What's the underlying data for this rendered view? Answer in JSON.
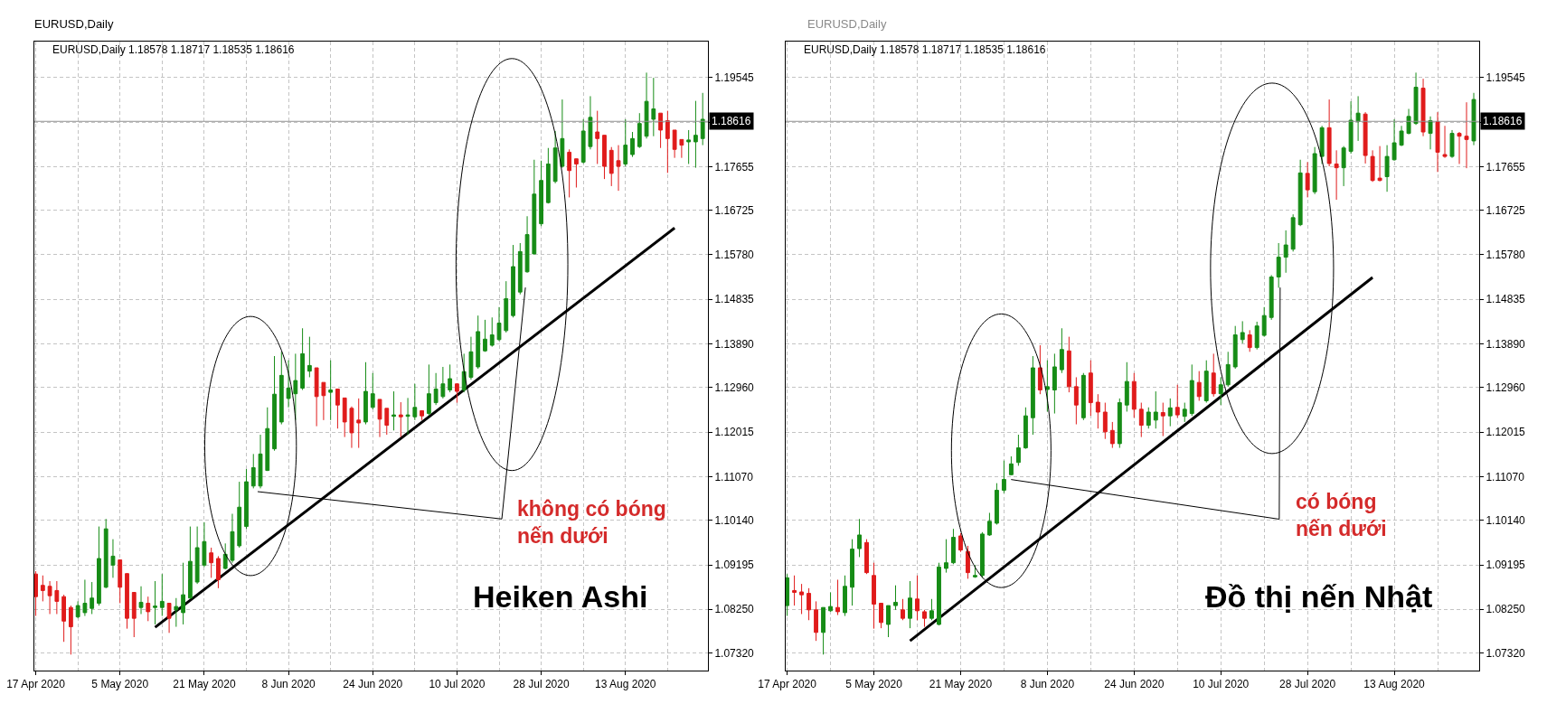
{
  "chart_data": [
    {
      "type": "candlestick",
      "title": "EURUSD,Daily",
      "subtitle": "EURUSD,Daily 1.18578 1.18717 1.18535 1.18616",
      "categories": [
        "17 Apr 2020",
        null,
        null,
        null,
        null,
        null,
        null,
        null,
        null,
        null,
        null,
        null,
        "5 May 2020",
        null,
        null,
        null,
        null,
        null,
        null,
        null,
        null,
        null,
        null,
        null,
        "21 May 2020",
        null,
        null,
        null,
        null,
        null,
        null,
        null,
        null,
        null,
        null,
        null,
        "8 Jun 2020",
        null,
        null,
        null,
        null,
        null,
        null,
        null,
        null,
        null,
        null,
        null,
        "24 Jun 2020",
        null,
        null,
        null,
        null,
        null,
        null,
        null,
        null,
        null,
        null,
        null,
        "10 Jul 2020",
        null,
        null,
        null,
        null,
        null,
        null,
        null,
        null,
        null,
        null,
        null,
        "28 Jul 2020",
        null,
        null,
        null,
        null,
        null,
        null,
        null,
        null,
        null,
        null,
        null,
        "13 Aug 2020",
        null,
        null,
        null,
        null,
        null,
        null,
        null,
        null,
        null,
        null,
        null
      ],
      "ohlc": [
        [
          1.09,
          1.0906,
          1.0811,
          1.0852
        ],
        [
          1.0876,
          1.0897,
          1.0842,
          1.0865
        ],
        [
          1.0874,
          1.0885,
          1.0815,
          1.0854
        ],
        [
          1.0865,
          1.0885,
          1.0815,
          1.0842
        ],
        [
          1.0852,
          1.0856,
          1.0756,
          1.08
        ],
        [
          1.0829,
          1.0833,
          1.0729,
          1.0788
        ],
        [
          1.0809,
          1.0842,
          1.0806,
          1.0833
        ],
        [
          1.0818,
          1.0888,
          1.0811,
          1.0838
        ],
        [
          1.0827,
          1.0883,
          1.0815,
          1.0849
        ],
        [
          1.0838,
          1.1001,
          1.0833,
          1.0933
        ],
        [
          1.0872,
          1.1017,
          1.087,
          1.0996
        ],
        [
          1.0919,
          1.0974,
          1.0892,
          1.0938
        ],
        [
          1.093,
          1.093,
          1.0838,
          1.0872
        ],
        [
          1.0901,
          1.0901,
          1.0784,
          1.0806
        ],
        [
          1.0861,
          1.0861,
          1.0766,
          1.0806
        ],
        [
          1.0829,
          1.0874,
          1.0815,
          1.084
        ],
        [
          1.0838,
          1.0852,
          1.08,
          1.082
        ],
        [
          1.0829,
          1.0885,
          1.0793,
          1.0832
        ],
        [
          1.0829,
          1.09,
          1.0811,
          1.0842
        ],
        [
          1.0838,
          1.0838,
          1.0775,
          1.0806
        ],
        [
          1.0824,
          1.0849,
          1.0788,
          1.0831
        ],
        [
          1.0818,
          1.0924,
          1.0793,
          1.0856
        ],
        [
          1.0849,
          1.1001,
          1.0847,
          1.0927
        ],
        [
          1.0883,
          1.1001,
          1.0879,
          1.0956
        ],
        [
          1.0919,
          1.101,
          1.0915,
          1.0969
        ],
        [
          1.0945,
          1.0956,
          1.0892,
          1.0924
        ],
        [
          1.0933,
          1.0938,
          1.087,
          1.0888
        ],
        [
          1.0912,
          1.0965,
          1.091,
          1.0942
        ],
        [
          1.0929,
          1.1028,
          1.0924,
          1.099
        ],
        [
          1.096,
          1.1096,
          1.0956,
          1.1042
        ],
        [
          1.1001,
          1.1123,
          1.0996,
          1.1096
        ],
        [
          1.1087,
          1.1155,
          1.1082,
          1.1126
        ],
        [
          1.1087,
          1.1196,
          1.1082,
          1.1155
        ],
        [
          1.112,
          1.1254,
          1.1119,
          1.1209
        ],
        [
          1.1166,
          1.1363,
          1.1162,
          1.1282
        ],
        [
          1.1223,
          1.1372,
          1.1218,
          1.1322
        ],
        [
          1.1273,
          1.1354,
          1.1254,
          1.1295
        ],
        [
          1.1283,
          1.1368,
          1.1227,
          1.1311
        ],
        [
          1.1295,
          1.1422,
          1.1291,
          1.1368
        ],
        [
          1.1331,
          1.1404,
          1.1318,
          1.1343
        ],
        [
          1.1338,
          1.1338,
          1.1214,
          1.1277
        ],
        [
          1.1307,
          1.1307,
          1.1227,
          1.1279
        ],
        [
          1.1286,
          1.1354,
          1.1227,
          1.1291
        ],
        [
          1.1293,
          1.1293,
          1.1209,
          1.1259
        ],
        [
          1.1274,
          1.1274,
          1.1191,
          1.1223
        ],
        [
          1.1252,
          1.1256,
          1.1168,
          1.12
        ],
        [
          1.1227,
          1.1273,
          1.1168,
          1.1221
        ],
        [
          1.1223,
          1.135,
          1.1218,
          1.1288
        ],
        [
          1.1254,
          1.1327,
          1.125,
          1.1283
        ],
        [
          1.1271,
          1.1271,
          1.1191,
          1.1229
        ],
        [
          1.1252,
          1.1252,
          1.1196,
          1.1216
        ],
        [
          1.1235,
          1.1288,
          1.1205,
          1.1238
        ],
        [
          1.1238,
          1.1265,
          1.1191,
          1.1234
        ],
        [
          1.1235,
          1.1274,
          1.1196,
          1.1238
        ],
        [
          1.1234,
          1.1304,
          1.1227,
          1.1254
        ],
        [
          1.1247,
          1.1247,
          1.1227,
          1.1236
        ],
        [
          1.1241,
          1.1345,
          1.1236,
          1.1283
        ],
        [
          1.1264,
          1.1327,
          1.1259,
          1.1293
        ],
        [
          1.1277,
          1.134,
          1.1273,
          1.1304
        ],
        [
          1.1291,
          1.1345,
          1.1286,
          1.1315
        ],
        [
          1.1304,
          1.1304,
          1.1264,
          1.1288
        ],
        [
          1.1291,
          1.1368,
          1.1286,
          1.133
        ],
        [
          1.1318,
          1.1404,
          1.1313,
          1.1372
        ],
        [
          1.134,
          1.1449,
          1.1336,
          1.1415
        ],
        [
          1.1374,
          1.144,
          1.1372,
          1.1399
        ],
        [
          1.1386,
          1.1445,
          1.1383,
          1.1408
        ],
        [
          1.1398,
          1.1467,
          1.1395,
          1.1433
        ],
        [
          1.1417,
          1.1522,
          1.1413,
          1.1485
        ],
        [
          1.1449,
          1.1599,
          1.1445,
          1.1553
        ],
        [
          1.1499,
          1.1603,
          1.1494,
          1.1585
        ],
        [
          1.1542,
          1.166,
          1.154,
          1.1621
        ],
        [
          1.158,
          1.178,
          1.1579,
          1.1707
        ],
        [
          1.1644,
          1.1778,
          1.1639,
          1.1736
        ],
        [
          1.1689,
          1.1805,
          1.1687,
          1.1771
        ],
        [
          1.1734,
          1.1841,
          1.173,
          1.1805
        ],
        [
          1.1766,
          1.1908,
          1.1763,
          1.1825
        ],
        [
          1.1796,
          1.1802,
          1.17,
          1.1757
        ],
        [
          1.1782,
          1.1782,
          1.1721,
          1.1771
        ],
        [
          1.1775,
          1.1866,
          1.1772,
          1.1841
        ],
        [
          1.1808,
          1.1915,
          1.1802,
          1.187
        ],
        [
          1.1839,
          1.1884,
          1.1771,
          1.1825
        ],
        [
          1.1832,
          1.1832,
          1.1739,
          1.1766
        ],
        [
          1.18,
          1.1807,
          1.1724,
          1.1751
        ],
        [
          1.1778,
          1.1811,
          1.1714,
          1.1766
        ],
        [
          1.1771,
          1.1866,
          1.1766,
          1.1811
        ],
        [
          1.1791,
          1.1839,
          1.1786,
          1.1825
        ],
        [
          1.1808,
          1.1879,
          1.1805,
          1.1857
        ],
        [
          1.183,
          1.1965,
          1.1825,
          1.1904
        ],
        [
          1.1866,
          1.1954,
          1.183,
          1.1888
        ],
        [
          1.1879,
          1.1879,
          1.1805,
          1.1843
        ],
        [
          1.1863,
          1.1884,
          1.1752,
          1.1825
        ],
        [
          1.1843,
          1.1843,
          1.1784,
          1.1802
        ],
        [
          1.1823,
          1.1823,
          1.1784,
          1.1811
        ],
        [
          1.1818,
          1.1843,
          1.1771,
          1.1822
        ],
        [
          1.1818,
          1.1905,
          1.1763,
          1.1832
        ],
        [
          1.1825,
          1.1922,
          1.1811,
          1.1866
        ]
      ],
      "colors": [
        "#e01b1b",
        "#e01b1b",
        "#e01b1b",
        "#e01b1b",
        "#e01b1b",
        "#e01b1b",
        "#168c16",
        "#168c16",
        "#168c16",
        "#168c16",
        "#168c16",
        "#168c16",
        "#e01b1b",
        "#e01b1b",
        "#e01b1b",
        "#168c16",
        "#e01b1b",
        "#168c16",
        "#168c16",
        "#e01b1b",
        "#168c16",
        "#168c16",
        "#168c16",
        "#168c16",
        "#168c16",
        "#e01b1b",
        "#e01b1b",
        "#168c16",
        "#168c16",
        "#168c16",
        "#168c16",
        "#168c16",
        "#168c16",
        "#168c16",
        "#168c16",
        "#168c16",
        "#168c16",
        "#168c16",
        "#168c16",
        "#168c16",
        "#e01b1b",
        "#e01b1b",
        "#168c16",
        "#e01b1b",
        "#e01b1b",
        "#e01b1b",
        "#e01b1b",
        "#168c16",
        "#168c16",
        "#e01b1b",
        "#e01b1b",
        "#168c16",
        "#e01b1b",
        "#168c16",
        "#168c16",
        "#e01b1b",
        "#168c16",
        "#168c16",
        "#168c16",
        "#168c16",
        "#e01b1b",
        "#168c16",
        "#168c16",
        "#168c16",
        "#168c16",
        "#168c16",
        "#168c16",
        "#168c16",
        "#168c16",
        "#168c16",
        "#168c16",
        "#168c16",
        "#168c16",
        "#168c16",
        "#168c16",
        "#168c16",
        "#e01b1b",
        "#e01b1b",
        "#168c16",
        "#168c16",
        "#e01b1b",
        "#e01b1b",
        "#e01b1b",
        "#e01b1b",
        "#168c16",
        "#168c16",
        "#168c16",
        "#168c16",
        "#168c16",
        "#e01b1b",
        "#e01b1b",
        "#e01b1b",
        "#e01b1b",
        "#168c16",
        "#168c16",
        "#168c16"
      ],
      "series": [
        {
          "type": "line",
          "color": "#000000",
          "values": [
            null,
            null,
            null,
            null,
            null,
            null,
            null,
            null,
            null,
            null,
            null,
            null,
            null,
            null,
            null,
            null,
            null,
            1.0787,
            null,
            null,
            null,
            null,
            null,
            null,
            null,
            null,
            null,
            null,
            null,
            null,
            null,
            null,
            null,
            null,
            null,
            null,
            null,
            null,
            null,
            null,
            null,
            null,
            null,
            null,
            null,
            null,
            null,
            null,
            null,
            null,
            null,
            null,
            null,
            null,
            null,
            null,
            null,
            null,
            null,
            null,
            null,
            null,
            null,
            null,
            null,
            null,
            null,
            null,
            null,
            null,
            null,
            null,
            null,
            null,
            null,
            null,
            null,
            null,
            null,
            null,
            null,
            null,
            null,
            null,
            null,
            null,
            null,
            null,
            null,
            null,
            null,
            1.1635,
            null,
            null,
            null,
            null
          ]
        }
      ],
      "ylim": [
        1.0695,
        1.2031
      ],
      "yticks": [
        1.19545,
        {
          "value": 1.186,
          "label": null
        },
        1.17655,
        1.16725,
        {
          "value": 1.1578,
          "label": "1.15780"
        },
        1.14835,
        {
          "value": 1.1389,
          "label": "1.13890"
        },
        {
          "value": 1.1296,
          "label": "1.12960"
        },
        1.12015,
        {
          "value": 1.1107,
          "label": "1.11070"
        },
        {
          "value": 1.1014,
          "label": "1.10140"
        },
        1.09195,
        {
          "value": 1.0825,
          "label": "1.08250"
        },
        {
          "value": 1.0732,
          "label": "1.07320"
        }
      ],
      "grid": true,
      "ref_lines": [
        {
          "axis": "y",
          "value": 1.18616,
          "label": "1.18616",
          "color": "#909090"
        }
      ],
      "annotations": [
        "không có bóng nến dưới",
        "Heiken Ashi"
      ]
    },
    {
      "type": "candlestick",
      "title": "EURUSD,Daily",
      "subtitle": "EURUSD,Daily 1.18578 1.18717 1.18535 1.18616",
      "categories": [
        "17 Apr 2020",
        null,
        null,
        null,
        null,
        null,
        null,
        null,
        null,
        null,
        null,
        null,
        "5 May 2020",
        null,
        null,
        null,
        null,
        null,
        null,
        null,
        null,
        null,
        null,
        null,
        "21 May 2020",
        null,
        null,
        null,
        null,
        null,
        null,
        null,
        null,
        null,
        null,
        null,
        "8 Jun 2020",
        null,
        null,
        null,
        null,
        null,
        null,
        null,
        null,
        null,
        null,
        null,
        "24 Jun 2020",
        null,
        null,
        null,
        null,
        null,
        null,
        null,
        null,
        null,
        null,
        null,
        "10 Jul 2020",
        null,
        null,
        null,
        null,
        null,
        null,
        null,
        null,
        null,
        null,
        null,
        "28 Jul 2020",
        null,
        null,
        null,
        null,
        null,
        null,
        null,
        null,
        null,
        null,
        null,
        "13 Aug 2020",
        null,
        null,
        null,
        null,
        null,
        null,
        null,
        null,
        null,
        null,
        null
      ],
      "ohlc": [
        [
          1.0833,
          1.09,
          1.0811,
          1.0892
        ],
        [
          1.0865,
          1.0897,
          1.0833,
          1.0861
        ],
        [
          1.0862,
          1.0879,
          1.0815,
          1.0856
        ],
        [
          1.0859,
          1.087,
          1.0802,
          1.0824
        ],
        [
          1.0824,
          1.0842,
          1.0758,
          1.0776
        ],
        [
          1.0776,
          1.0829,
          1.0729,
          1.0829
        ],
        [
          1.0822,
          1.0861,
          1.082,
          1.0831
        ],
        [
          1.0829,
          1.0888,
          1.0813,
          1.082
        ],
        [
          1.0818,
          1.0897,
          1.0811,
          1.0874
        ],
        [
          1.0872,
          1.0974,
          1.0833,
          1.0953
        ],
        [
          1.0954,
          1.1017,
          1.0936,
          1.0983
        ],
        [
          1.0967,
          1.0974,
          1.09,
          1.0903
        ],
        [
          1.0897,
          1.0924,
          1.0784,
          1.0836
        ],
        [
          1.0838,
          1.0838,
          1.0785,
          1.0797
        ],
        [
          1.0793,
          1.0833,
          1.0766,
          1.0833
        ],
        [
          1.0833,
          1.0876,
          1.0824,
          1.084
        ],
        [
          1.0824,
          1.0847,
          1.0802,
          1.0806
        ],
        [
          1.0806,
          1.0885,
          1.0785,
          1.0849
        ],
        [
          1.0847,
          1.0897,
          1.0802,
          1.0822
        ],
        [
          1.082,
          1.0824,
          1.0788,
          1.0806
        ],
        [
          1.0806,
          1.0847,
          1.0802,
          1.0822
        ],
        [
          1.0793,
          1.0924,
          1.0791,
          1.0915
        ],
        [
          1.0912,
          1.0974,
          1.0903,
          1.0924
        ],
        [
          1.0924,
          1.0996,
          1.0921,
          1.0978
        ],
        [
          1.0981,
          1.0987,
          1.0947,
          1.0951
        ],
        [
          1.0948,
          1.096,
          1.089,
          1.0903
        ],
        [
          1.0894,
          1.0919,
          1.0892,
          1.0897
        ],
        [
          1.0897,
          1.0989,
          1.0892,
          1.0985
        ],
        [
          1.0983,
          1.103,
          1.0981,
          1.1012
        ],
        [
          1.1008,
          1.1093,
          1.1005,
          1.1078
        ],
        [
          1.1078,
          1.1141,
          1.1072,
          1.1101
        ],
        [
          1.1111,
          1.115,
          1.111,
          1.1134
        ],
        [
          1.1137,
          1.1196,
          1.113,
          1.1168
        ],
        [
          1.1168,
          1.1254,
          1.1166,
          1.1236
        ],
        [
          1.1232,
          1.1363,
          1.1196,
          1.1338
        ],
        [
          1.1338,
          1.1386,
          1.1282,
          1.1291
        ],
        [
          1.1292,
          1.1354,
          1.1245,
          1.1298
        ],
        [
          1.1291,
          1.1368,
          1.1241,
          1.134
        ],
        [
          1.1334,
          1.1422,
          1.1327,
          1.1377
        ],
        [
          1.1374,
          1.1404,
          1.1286,
          1.1298
        ],
        [
          1.1298,
          1.1318,
          1.1218,
          1.1259
        ],
        [
          1.1232,
          1.1327,
          1.1227,
          1.1322
        ],
        [
          1.1327,
          1.1354,
          1.1236,
          1.1264
        ],
        [
          1.1265,
          1.1282,
          1.1209,
          1.1244
        ],
        [
          1.1244,
          1.1264,
          1.1187,
          1.1202
        ],
        [
          1.1205,
          1.1223,
          1.1168,
          1.1177
        ],
        [
          1.1177,
          1.1273,
          1.1168,
          1.1264
        ],
        [
          1.1259,
          1.135,
          1.1245,
          1.1309
        ],
        [
          1.1309,
          1.1327,
          1.1232,
          1.125
        ],
        [
          1.125,
          1.1264,
          1.1191,
          1.1216
        ],
        [
          1.1216,
          1.1254,
          1.1209,
          1.1244
        ],
        [
          1.1227,
          1.1288,
          1.1209,
          1.1244
        ],
        [
          1.1243,
          1.1264,
          1.1193,
          1.1236
        ],
        [
          1.1236,
          1.1273,
          1.1214,
          1.1253
        ],
        [
          1.1254,
          1.1302,
          1.1232,
          1.1238
        ],
        [
          1.1235,
          1.1264,
          1.1223,
          1.125
        ],
        [
          1.1241,
          1.1345,
          1.1236,
          1.1311
        ],
        [
          1.1307,
          1.1331,
          1.1268,
          1.1277
        ],
        [
          1.1268,
          1.1354,
          1.1264,
          1.1331
        ],
        [
          1.1327,
          1.1368,
          1.1277,
          1.1283
        ],
        [
          1.1283,
          1.1318,
          1.1259,
          1.1302
        ],
        [
          1.1302,
          1.1372,
          1.1298,
          1.1345
        ],
        [
          1.134,
          1.1427,
          1.1336,
          1.1408
        ],
        [
          1.1398,
          1.1437,
          1.139,
          1.1413
        ],
        [
          1.1408,
          1.1418,
          1.1372,
          1.1381
        ],
        [
          1.1381,
          1.1436,
          1.1377,
          1.1427
        ],
        [
          1.1407,
          1.1467,
          1.1404,
          1.1449
        ],
        [
          1.1445,
          1.1535,
          1.144,
          1.1531
        ],
        [
          1.1531,
          1.1603,
          1.1508,
          1.1573
        ],
        [
          1.1573,
          1.163,
          1.154,
          1.1599
        ],
        [
          1.159,
          1.1664,
          1.1585,
          1.1657
        ],
        [
          1.1642,
          1.178,
          1.1639,
          1.1752
        ],
        [
          1.1751,
          1.1775,
          1.17,
          1.1716
        ],
        [
          1.1712,
          1.1807,
          1.1707,
          1.1793
        ],
        [
          1.1787,
          1.1852,
          1.1771,
          1.1848
        ],
        [
          1.1848,
          1.1908,
          1.1766,
          1.1772
        ],
        [
          1.1771,
          1.18,
          1.1695,
          1.1763
        ],
        [
          1.1763,
          1.1809,
          1.1724,
          1.1805
        ],
        [
          1.1798,
          1.1904,
          1.1793,
          1.1864
        ],
        [
          1.1861,
          1.1915,
          1.182,
          1.1879
        ],
        [
          1.1877,
          1.1881,
          1.1772,
          1.1789
        ],
        [
          1.1787,
          1.18,
          1.1733,
          1.1736
        ],
        [
          1.1741,
          1.1809,
          1.1734,
          1.1736
        ],
        [
          1.1744,
          1.1811,
          1.1712,
          1.1787
        ],
        [
          1.178,
          1.1866,
          1.1778,
          1.1816
        ],
        [
          1.1811,
          1.1852,
          1.1809,
          1.1841
        ],
        [
          1.1836,
          1.1888,
          1.1834,
          1.1872
        ],
        [
          1.1857,
          1.1965,
          1.1854,
          1.1934
        ],
        [
          1.1932,
          1.1952,
          1.183,
          1.1839
        ],
        [
          1.1836,
          1.1872,
          1.1802,
          1.1863
        ],
        [
          1.1861,
          1.1881,
          1.1754,
          1.1796
        ],
        [
          1.1791,
          1.1852,
          1.1784,
          1.1787
        ],
        [
          1.1787,
          1.1843,
          1.1784,
          1.1836
        ],
        [
          1.1836,
          1.1839,
          1.1771,
          1.183
        ],
        [
          1.183,
          1.1902,
          1.1762,
          1.1823
        ],
        [
          1.182,
          1.1922,
          1.1811,
          1.1908
        ]
      ],
      "colors": [
        "#168c16",
        "#e01b1b",
        "#e01b1b",
        "#e01b1b",
        "#e01b1b",
        "#168c16",
        "#168c16",
        "#e01b1b",
        "#168c16",
        "#168c16",
        "#168c16",
        "#e01b1b",
        "#e01b1b",
        "#e01b1b",
        "#168c16",
        "#168c16",
        "#e01b1b",
        "#168c16",
        "#e01b1b",
        "#e01b1b",
        "#168c16",
        "#168c16",
        "#168c16",
        "#168c16",
        "#e01b1b",
        "#e01b1b",
        "#168c16",
        "#168c16",
        "#168c16",
        "#168c16",
        "#168c16",
        "#168c16",
        "#168c16",
        "#168c16",
        "#168c16",
        "#e01b1b",
        "#168c16",
        "#168c16",
        "#168c16",
        "#e01b1b",
        "#e01b1b",
        "#168c16",
        "#e01b1b",
        "#e01b1b",
        "#e01b1b",
        "#e01b1b",
        "#168c16",
        "#168c16",
        "#e01b1b",
        "#e01b1b",
        "#168c16",
        "#168c16",
        "#e01b1b",
        "#168c16",
        "#e01b1b",
        "#168c16",
        "#168c16",
        "#e01b1b",
        "#168c16",
        "#e01b1b",
        "#168c16",
        "#168c16",
        "#168c16",
        "#168c16",
        "#e01b1b",
        "#168c16",
        "#168c16",
        "#168c16",
        "#168c16",
        "#168c16",
        "#168c16",
        "#168c16",
        "#e01b1b",
        "#168c16",
        "#168c16",
        "#e01b1b",
        "#e01b1b",
        "#168c16",
        "#168c16",
        "#168c16",
        "#e01b1b",
        "#e01b1b",
        "#e01b1b",
        "#168c16",
        "#168c16",
        "#168c16",
        "#168c16",
        "#168c16",
        "#e01b1b",
        "#168c16",
        "#e01b1b",
        "#e01b1b",
        "#168c16",
        "#e01b1b",
        "#e01b1b",
        "#168c16"
      ],
      "series": [
        {
          "type": "line",
          "color": "#000000",
          "values": [
            null,
            null,
            null,
            null,
            null,
            null,
            null,
            null,
            null,
            null,
            null,
            null,
            null,
            null,
            null,
            null,
            null,
            1.0758,
            null,
            null,
            null,
            null,
            null,
            null,
            null,
            null,
            null,
            null,
            null,
            null,
            null,
            null,
            null,
            null,
            null,
            null,
            null,
            null,
            null,
            null,
            null,
            null,
            null,
            null,
            null,
            null,
            null,
            null,
            null,
            null,
            null,
            null,
            null,
            null,
            null,
            null,
            null,
            null,
            null,
            null,
            null,
            null,
            null,
            null,
            null,
            null,
            null,
            null,
            null,
            null,
            null,
            null,
            null,
            null,
            null,
            null,
            null,
            null,
            null,
            null,
            null,
            1.153,
            null,
            null,
            null,
            null,
            null,
            null,
            null,
            null,
            null,
            null,
            null,
            null,
            null,
            null
          ]
        }
      ],
      "ylim": [
        1.0695,
        1.2031
      ],
      "yticks": [
        1.19545,
        {
          "value": 1.186,
          "label": null
        },
        1.17655,
        1.16725,
        {
          "value": 1.1578,
          "label": "1.15780"
        },
        1.14835,
        {
          "value": 1.1389,
          "label": "1.13890"
        },
        {
          "value": 1.1296,
          "label": "1.12960"
        },
        1.12015,
        {
          "value": 1.1107,
          "label": "1.11070"
        },
        {
          "value": 1.1014,
          "label": "1.10140"
        },
        1.09195,
        {
          "value": 1.0825,
          "label": "1.08250"
        },
        {
          "value": 1.0732,
          "label": "1.07320"
        }
      ],
      "grid": true,
      "ref_lines": [
        {
          "axis": "y",
          "value": 1.18616,
          "label": "1.18616",
          "color": "#909090"
        }
      ],
      "annotations": [
        "có bóng nến dưới",
        "Đồ thị nến Nhật"
      ]
    }
  ]
}
